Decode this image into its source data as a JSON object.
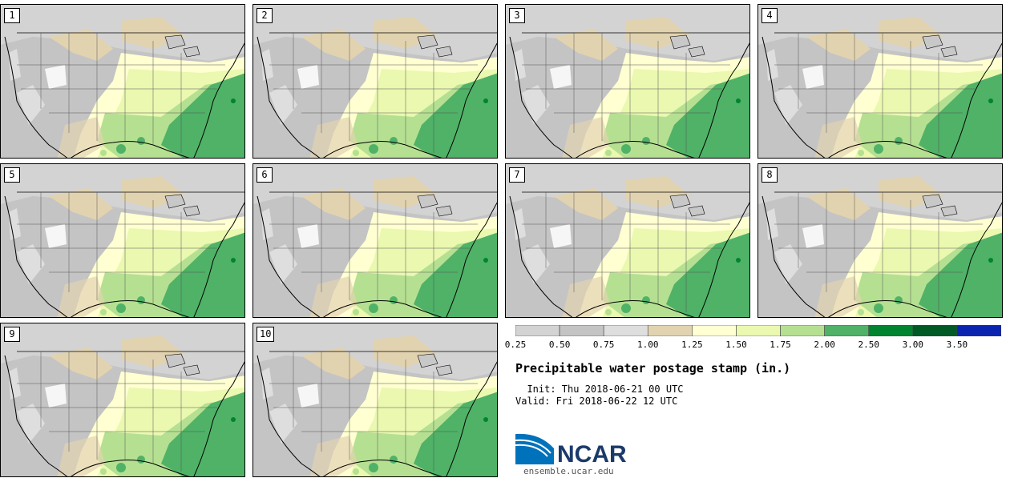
{
  "panels": [
    {
      "label": "1"
    },
    {
      "label": "2"
    },
    {
      "label": "3"
    },
    {
      "label": "4"
    },
    {
      "label": "5"
    },
    {
      "label": "6"
    },
    {
      "label": "7"
    },
    {
      "label": "8"
    },
    {
      "label": "9"
    },
    {
      "label": "10"
    }
  ],
  "colorbar": {
    "levels": [
      "0.25",
      "0.50",
      "0.75",
      "1.00",
      "1.25",
      "1.50",
      "1.75",
      "2.00",
      "2.50",
      "3.00",
      "3.50"
    ],
    "colors": [
      "#d3d3d3",
      "#c4c4c4",
      "#dedede",
      "#e2d3b0",
      "#ffffd2",
      "#eaf8b0",
      "#b5e092",
      "#4fb267",
      "#00842f",
      "#005a25",
      "#0b24b0"
    ]
  },
  "title": "Precipitable water postage stamp (in.)",
  "init": "  Init: Thu 2018-06-21 00 UTC",
  "valid": "Valid: Fri 2018-06-22 12 UTC",
  "logo_text": "NCAR",
  "site": "ensemble.ucar.edu",
  "brand_colors": {
    "logo_blue": "#0072bc",
    "logo_navy": "#1b3a6b"
  }
}
